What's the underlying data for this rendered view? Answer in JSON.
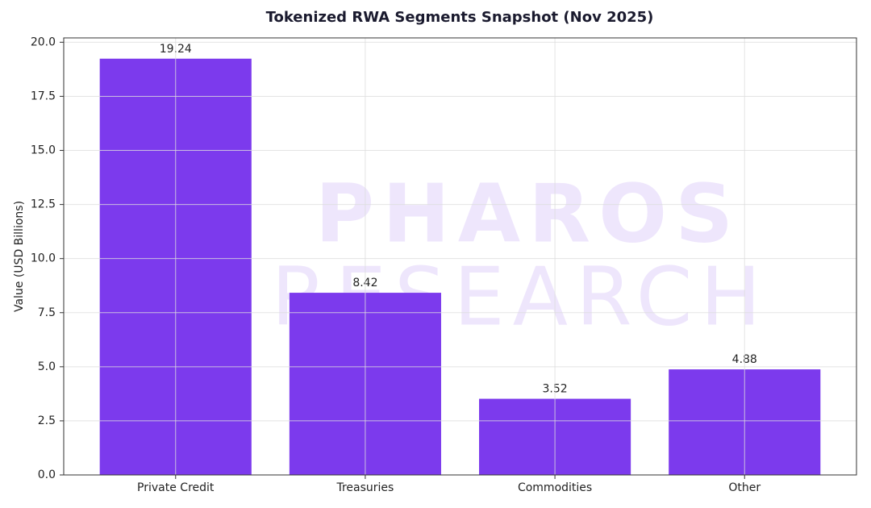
{
  "chart_data": {
    "type": "bar",
    "title": "Tokenized RWA Segments Snapshot (Nov 2025)",
    "y_label": "Value (USD Billions)",
    "categories": [
      "Private Credit",
      "Treasuries",
      "Commodities",
      "Other"
    ],
    "values": [
      19.24,
      8.42,
      3.52,
      4.88
    ],
    "color": "#7c3aed",
    "ylim": [
      0,
      20.2
    ],
    "yticks": [
      {
        "value": 0,
        "label": "0.0"
      },
      2.5,
      {
        "value": 5,
        "label": "5.0"
      },
      7.5,
      {
        "value": 10,
        "label": "10.0"
      },
      12.5,
      {
        "value": 15,
        "label": "15.0"
      },
      17.5,
      {
        "value": 20,
        "label": "20.0"
      }
    ],
    "grid": true,
    "watermark": [
      "PHAROS",
      "RESEARCH"
    ]
  }
}
